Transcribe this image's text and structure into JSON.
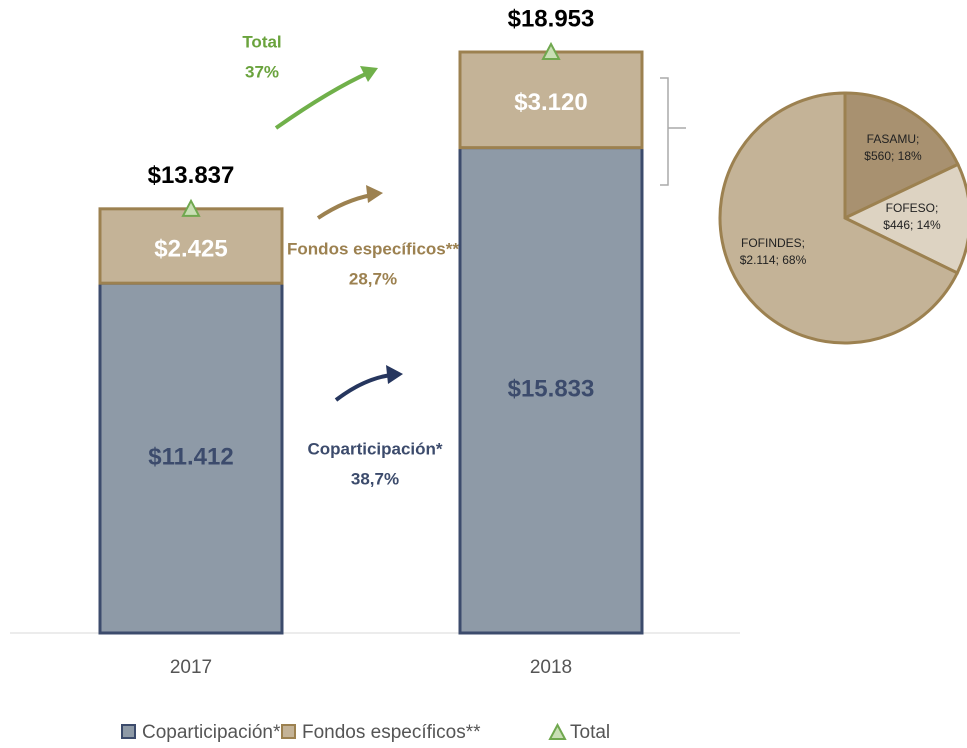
{
  "chart_data": [
    {
      "type": "stacked_bar",
      "categories": [
        "2017",
        "2018"
      ],
      "series": [
        {
          "name": "Coparticipación*",
          "color": "#8e9aa7",
          "stroke": "#3c4b6c",
          "label_color": "#3c4b6c",
          "values": [
            11412,
            15833
          ],
          "value_labels": [
            "$11.412",
            "$15.833"
          ]
        },
        {
          "name": "Fondos específicos**",
          "color": "#c4b397",
          "stroke": "#9c8150",
          "label_color": "#ffffff",
          "values": [
            2425,
            3120
          ],
          "value_labels": [
            "$2.425",
            "$3.120"
          ]
        }
      ],
      "total": {
        "name": "Total",
        "color": "#70a84f",
        "values": [
          13837,
          18953
        ],
        "value_labels": [
          "$13.837",
          "$18.953"
        ]
      },
      "annotations": [
        {
          "label": "Total",
          "value": 37,
          "value_label": "37%",
          "color": "#6aa33d"
        },
        {
          "label": "Fondos específicos**",
          "value": 28.7,
          "value_label": "28,7%",
          "color": "#9c8150"
        },
        {
          "label": "Coparticipación*",
          "value": 38.7,
          "value_label": "38,7%",
          "color": "#3c4b6c"
        }
      ],
      "legend": "bottom"
    },
    {
      "type": "pie",
      "categories": [
        "FASAMU;",
        "FOFESO;",
        "FOFINDES;"
      ],
      "values": [
        560,
        446,
        2114
      ],
      "value_labels": [
        "$560; 18%",
        "$446; 14%",
        "$2.114; 68%"
      ],
      "colors": [
        "#a89170",
        "#ddd3c2",
        "#c4b397"
      ],
      "stroke": "#9c8150"
    }
  ]
}
